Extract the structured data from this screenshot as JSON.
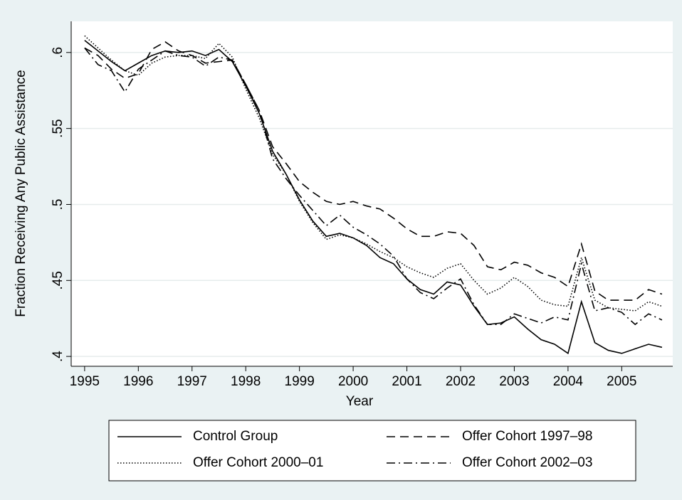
{
  "chart_data": {
    "type": "line",
    "x_label": "Year",
    "y_label": "Fraction Receiving Any Public Assistance",
    "x": [
      1995,
      1995.25,
      1995.5,
      1995.75,
      1996,
      1996.25,
      1996.5,
      1996.75,
      1997,
      1997.25,
      1997.5,
      1997.75,
      1998,
      1998.25,
      1998.5,
      1998.75,
      1999,
      1999.25,
      1999.5,
      1999.75,
      2000,
      2000.25,
      2000.5,
      2000.75,
      2001,
      2001.25,
      2001.5,
      2001.75,
      2002,
      2002.25,
      2002.5,
      2002.75,
      2003,
      2003.25,
      2003.5,
      2003.75,
      2004,
      2004.25,
      2004.5,
      2004.75,
      2005,
      2005.25,
      2005.5,
      2005.75
    ],
    "series": [
      {
        "name": "Control Group",
        "color": "#000000",
        "dash": "solid",
        "values": [
          0.608,
          0.601,
          0.594,
          0.588,
          0.593,
          0.598,
          0.601,
          0.6,
          0.601,
          0.598,
          0.602,
          0.594,
          0.578,
          0.56,
          0.535,
          0.52,
          0.503,
          0.489,
          0.479,
          0.481,
          0.478,
          0.473,
          0.465,
          0.461,
          0.451,
          0.444,
          0.441,
          0.449,
          0.447,
          0.433,
          0.421,
          0.422,
          0.426,
          0.418,
          0.411,
          0.408,
          0.402,
          0.436,
          0.409,
          0.404,
          0.402,
          0.405,
          0.408,
          0.406
        ]
      },
      {
        "name": "Offer Cohort 1997–98",
        "color": "#000000",
        "dash": "dashed",
        "values": [
          0.603,
          0.598,
          0.589,
          0.583,
          0.586,
          0.602,
          0.607,
          0.601,
          0.598,
          0.593,
          0.594,
          0.595,
          0.579,
          0.562,
          0.538,
          0.527,
          0.515,
          0.508,
          0.502,
          0.5,
          0.502,
          0.499,
          0.497,
          0.491,
          0.484,
          0.479,
          0.479,
          0.482,
          0.481,
          0.473,
          0.459,
          0.457,
          0.462,
          0.46,
          0.455,
          0.452,
          0.446,
          0.474,
          0.443,
          0.437,
          0.437,
          0.437,
          0.444,
          0.441
        ]
      },
      {
        "name": "Offer Cohort 2000–01",
        "color": "#000000",
        "dash": "dotted",
        "values": [
          0.611,
          0.603,
          0.595,
          0.588,
          0.585,
          0.593,
          0.597,
          0.598,
          0.598,
          0.596,
          0.606,
          0.597,
          0.576,
          0.557,
          0.533,
          0.52,
          0.502,
          0.488,
          0.477,
          0.48,
          0.478,
          0.474,
          0.469,
          0.465,
          0.459,
          0.455,
          0.452,
          0.458,
          0.461,
          0.45,
          0.441,
          0.445,
          0.452,
          0.446,
          0.437,
          0.434,
          0.433,
          0.465,
          0.437,
          0.432,
          0.431,
          0.43,
          0.436,
          0.433
        ]
      },
      {
        "name": "Offer Cohort 2002–03",
        "color": "#000000",
        "dash": "dashdot",
        "values": [
          0.603,
          0.592,
          0.588,
          0.574,
          0.589,
          0.595,
          0.601,
          0.598,
          0.597,
          0.591,
          0.597,
          0.595,
          0.579,
          0.562,
          0.53,
          0.517,
          0.506,
          0.496,
          0.486,
          0.493,
          0.485,
          0.48,
          0.474,
          0.466,
          0.451,
          0.442,
          0.438,
          0.445,
          0.451,
          0.434,
          0.421,
          0.421,
          0.428,
          0.425,
          0.422,
          0.426,
          0.424,
          0.461,
          0.43,
          0.432,
          0.429,
          0.421,
          0.428,
          0.424
        ]
      }
    ],
    "xlim": [
      1994.75,
      2005.95
    ],
    "xticks": [
      1995,
      1996,
      1997,
      1998,
      1999,
      2000,
      2001,
      2002,
      2003,
      2004,
      2005
    ],
    "ylim": [
      0.3935,
      0.6205
    ],
    "yticks": [
      {
        "value": 0.4,
        "label": ".4"
      },
      {
        "value": 0.45,
        "label": ".45"
      },
      {
        "value": 0.5,
        "label": ".5"
      },
      {
        "value": 0.55,
        "label": ".55"
      },
      {
        "value": 0.6,
        "label": ".6"
      }
    ],
    "grid": true,
    "legend": "bottom"
  }
}
